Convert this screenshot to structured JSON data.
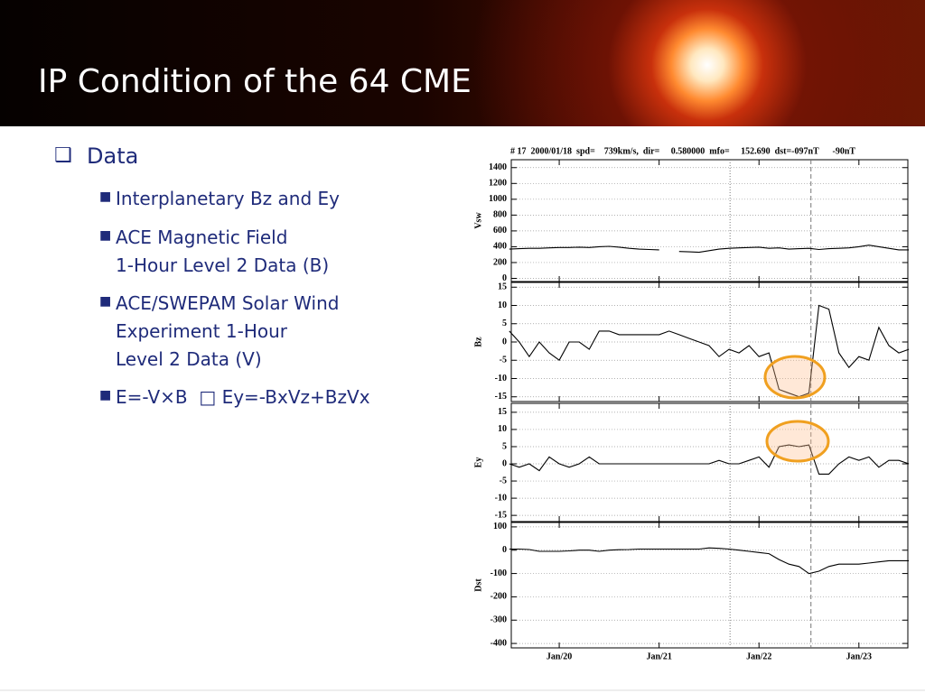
{
  "slide": {
    "title": "IP Condition of the 64 CME",
    "bullets": [
      "Data"
    ],
    "sub_bullets": [
      [
        "Interplanetary Bz and Ey"
      ],
      [
        "ACE Magnetic Field",
        "1-Hour Level 2 Data (B)"
      ],
      [
        "ACE/SWEPAM Solar Wind",
        "Experiment 1-Hour",
        "Level 2 Data (V)"
      ],
      [
        "E=-V×B  □ Ey=-BxVz+BzVx"
      ]
    ]
  },
  "plot_header": "# 17  2000/01/18  spd=    739km/s,  dir=     0.580000  mfo=     152.690  dst=-097nT      -90nT",
  "reference_lines": [
    {
      "x": 21.71,
      "style": "dotted"
    },
    {
      "x": 22.52,
      "style": "dashed"
    }
  ],
  "chart_data": [
    {
      "type": "line",
      "ylabel": "Vsw",
      "color": "#000000",
      "xlim": [
        19.52,
        23.49
      ],
      "ylim": [
        -40,
        1500
      ],
      "yticks": [
        0,
        200,
        400,
        600,
        800,
        1000,
        1200,
        1400
      ],
      "grid": true,
      "x": [
        19.5,
        19.6,
        19.7,
        19.8,
        19.9,
        20.0,
        20.1,
        20.2,
        20.3,
        20.4,
        20.5,
        20.6,
        20.7,
        20.8,
        20.9,
        21.0,
        21.1,
        21.2,
        21.3,
        21.4,
        21.5,
        21.6,
        21.7,
        21.8,
        21.9,
        22.0,
        22.1,
        22.2,
        22.3,
        22.4,
        22.5,
        22.6,
        22.7,
        22.8,
        22.9,
        23.0,
        23.1,
        23.2,
        23.3,
        23.4,
        23.5
      ],
      "values": [
        370,
        375,
        380,
        380,
        385,
        390,
        390,
        395,
        390,
        400,
        405,
        395,
        380,
        370,
        365,
        360,
        null,
        340,
        335,
        330,
        350,
        370,
        380,
        385,
        390,
        395,
        380,
        385,
        370,
        375,
        380,
        365,
        375,
        380,
        385,
        400,
        420,
        400,
        380,
        360,
        360
      ]
    },
    {
      "type": "line",
      "ylabel": "Bz",
      "color": "#000000",
      "xlim": [
        19.52,
        23.49
      ],
      "ylim": [
        -16.3,
        16.3
      ],
      "yticks": [
        15,
        10,
        5,
        0,
        -5,
        -10,
        -15
      ],
      "grid": true,
      "x": [
        19.5,
        19.6,
        19.7,
        19.8,
        19.9,
        20.0,
        20.1,
        20.2,
        20.3,
        20.4,
        20.5,
        20.6,
        20.7,
        20.8,
        20.9,
        21.0,
        21.1,
        21.2,
        21.3,
        21.4,
        21.5,
        21.6,
        21.7,
        21.8,
        21.9,
        22.0,
        22.1,
        22.2,
        22.3,
        22.4,
        22.5,
        22.6,
        22.7,
        22.8,
        22.9,
        23.0,
        23.1,
        23.2,
        23.3,
        23.4,
        23.5
      ],
      "values": [
        3,
        0,
        -4,
        0,
        -3,
        -5,
        0,
        0,
        -2,
        3,
        3,
        2,
        2,
        2,
        2,
        2,
        3,
        2,
        1,
        0,
        -1,
        -4,
        -2,
        -3,
        -1,
        -4,
        -3,
        -13,
        -14,
        -15,
        -14,
        10,
        9,
        -3,
        -7,
        -4,
        -5,
        4,
        -1,
        -3,
        -2
      ]
    },
    {
      "type": "line",
      "ylabel": "Ey",
      "color": "#000000",
      "xlim": [
        19.52,
        23.49
      ],
      "ylim": [
        -16.8,
        17.6
      ],
      "yticks": [
        15,
        10,
        5,
        0,
        -5,
        -10,
        -15
      ],
      "grid": true,
      "x": [
        19.5,
        19.6,
        19.7,
        19.8,
        19.9,
        20.0,
        20.1,
        20.2,
        20.3,
        20.4,
        20.5,
        20.6,
        20.7,
        20.8,
        20.9,
        21.0,
        21.1,
        21.2,
        21.3,
        21.4,
        21.5,
        21.6,
        21.7,
        21.8,
        21.9,
        22.0,
        22.1,
        22.2,
        22.3,
        22.4,
        22.5,
        22.6,
        22.7,
        22.8,
        22.9,
        23.0,
        23.1,
        23.2,
        23.3,
        23.4,
        23.5
      ],
      "values": [
        0,
        -1,
        0,
        -2,
        2,
        0,
        -1,
        0,
        2,
        0,
        0,
        0,
        0,
        0,
        0,
        0,
        0,
        0,
        0,
        0,
        0,
        1,
        0,
        0,
        1,
        2,
        -1,
        5,
        5.5,
        5,
        5.5,
        -3,
        -3,
        0,
        2,
        1,
        2,
        -1,
        1,
        1,
        0
      ]
    },
    {
      "type": "line",
      "ylabel": "Dst",
      "color": "#000000",
      "xlim": [
        19.52,
        23.49
      ],
      "ylim": [
        -419,
        119
      ],
      "yticks": [
        100,
        0,
        -100,
        -200,
        -300,
        -400
      ],
      "grid": true,
      "xticks": [
        {
          "value": 20,
          "label": "Jan/20"
        },
        {
          "value": 21,
          "label": "Jan/21"
        },
        {
          "value": 22,
          "label": "Jan/22"
        },
        {
          "value": 23,
          "label": "Jan/23"
        }
      ],
      "x": [
        19.5,
        19.6,
        19.7,
        19.8,
        19.9,
        20.0,
        20.1,
        20.2,
        20.3,
        20.4,
        20.5,
        20.6,
        20.7,
        20.8,
        20.9,
        21.0,
        21.1,
        21.2,
        21.3,
        21.4,
        21.5,
        21.6,
        21.7,
        21.8,
        21.9,
        22.0,
        22.1,
        22.2,
        22.3,
        22.4,
        22.5,
        22.6,
        22.7,
        22.8,
        22.9,
        23.0,
        23.1,
        23.2,
        23.3,
        23.4,
        23.5
      ],
      "values": [
        5,
        5,
        3,
        -5,
        -5,
        -5,
        -3,
        0,
        0,
        -5,
        0,
        2,
        3,
        5,
        5,
        5,
        5,
        5,
        5,
        5,
        10,
        8,
        5,
        0,
        -5,
        -10,
        -15,
        -40,
        -60,
        -70,
        -100,
        -90,
        -70,
        -60,
        -60,
        -60,
        -55,
        -50,
        -45,
        -45,
        -45
      ]
    }
  ]
}
